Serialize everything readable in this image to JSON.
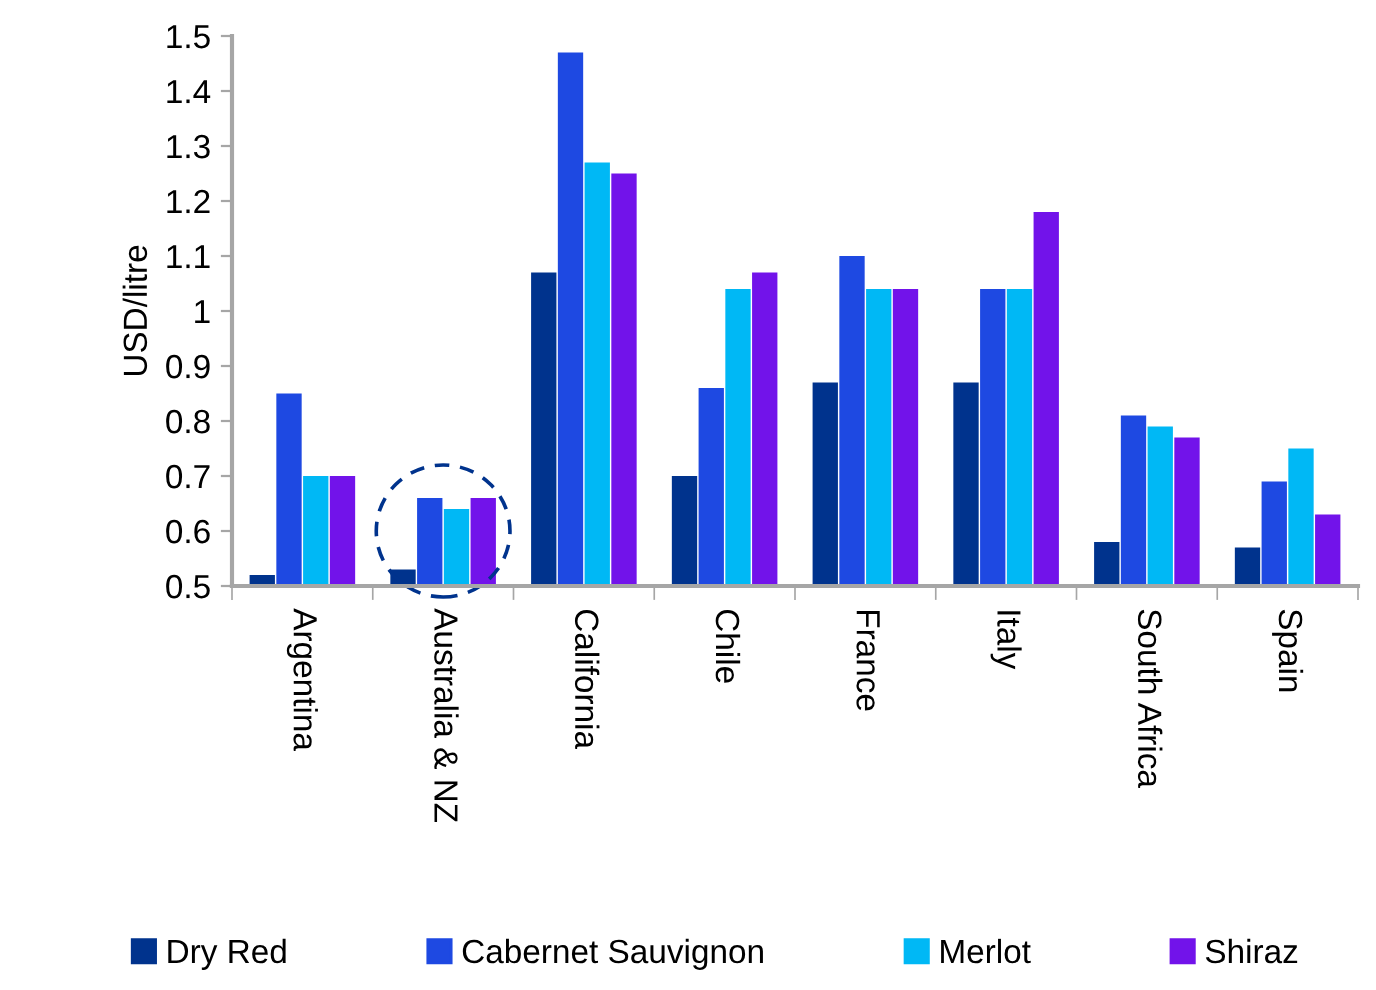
{
  "chart_data": {
    "type": "bar",
    "ylabel": "USD/litre",
    "categories": [
      "Argentina",
      "Australia & NZ",
      "California",
      "Chile",
      "France",
      "Italy",
      "South Africa",
      "Spain"
    ],
    "series": [
      {
        "name": "Dry Red",
        "color": "#00338d",
        "values": [
          0.52,
          0.53,
          1.07,
          0.7,
          0.87,
          0.87,
          0.58,
          0.57
        ]
      },
      {
        "name": "Cabernet Sauvignon",
        "color": "#1e49e2",
        "values": [
          0.85,
          0.66,
          1.47,
          0.86,
          1.1,
          1.04,
          0.81,
          0.69
        ]
      },
      {
        "name": "Merlot",
        "color": "#00b8f5",
        "values": [
          0.7,
          0.64,
          1.27,
          1.04,
          1.04,
          1.04,
          0.79,
          0.75
        ]
      },
      {
        "name": "Shiraz",
        "color": "#7213ea",
        "values": [
          0.7,
          0.66,
          1.25,
          1.07,
          1.04,
          1.18,
          0.77,
          0.63
        ]
      }
    ],
    "ylim": [
      0.5,
      1.5
    ],
    "yticks": [
      0.5,
      0.6,
      0.7,
      0.8,
      0.9,
      1,
      1.1,
      1.2,
      1.3,
      1.4,
      1.5
    ],
    "grid": false,
    "legend": "bottom"
  }
}
